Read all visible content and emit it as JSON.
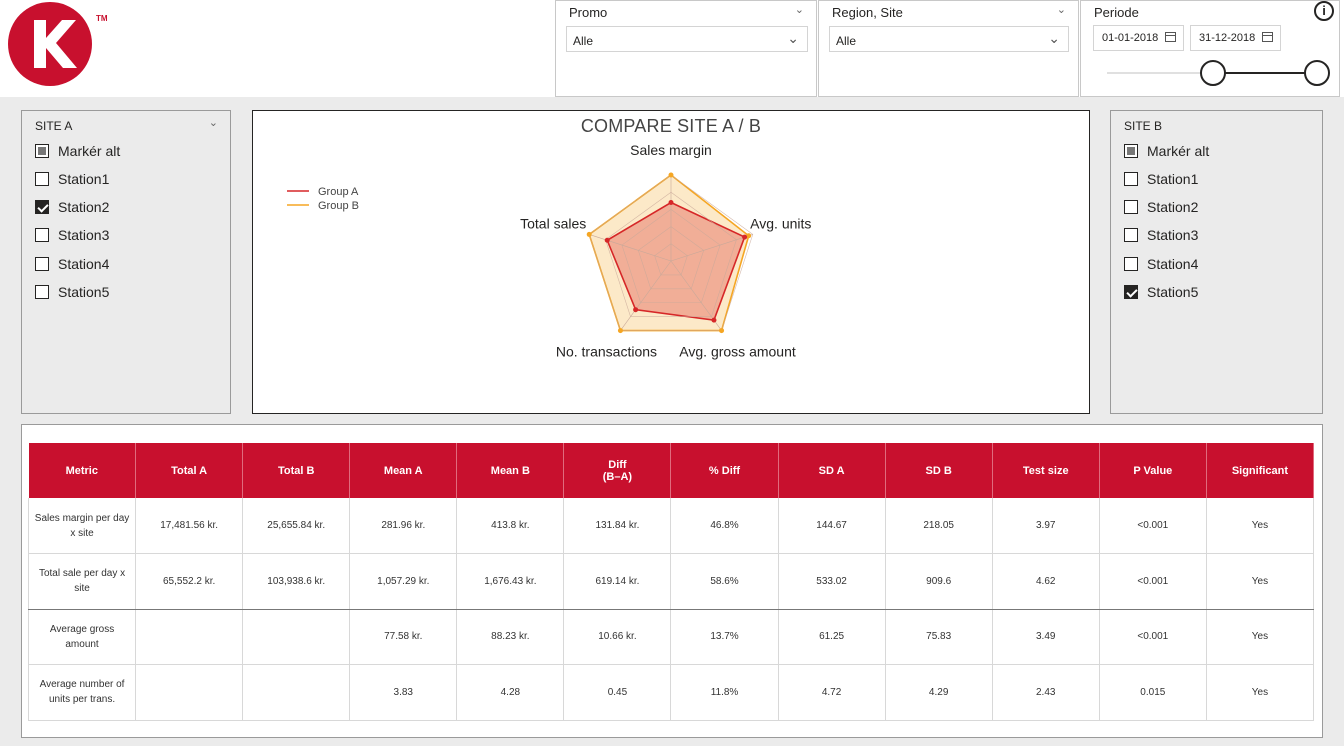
{
  "header": {
    "logo_letter": "K",
    "logo_tm": "TM",
    "brand_color": "#c8102e",
    "promo": {
      "title": "Promo",
      "value": "Alle"
    },
    "region": {
      "title": "Region, Site",
      "value": "Alle"
    },
    "periode": {
      "title": "Periode",
      "start": "01-01-2018",
      "end": "31-12-2018",
      "range_fraction": [
        0.5,
        1.0
      ]
    },
    "info_icon": "i"
  },
  "site_a": {
    "title": "SITE A",
    "items": [
      {
        "label": "Markér alt",
        "state": "partial"
      },
      {
        "label": "Station1",
        "state": "unchecked"
      },
      {
        "label": "Station2",
        "state": "checked"
      },
      {
        "label": "Station3",
        "state": "unchecked"
      },
      {
        "label": "Station4",
        "state": "unchecked"
      },
      {
        "label": "Station5",
        "state": "unchecked"
      }
    ]
  },
  "site_b": {
    "title": "SITE B",
    "items": [
      {
        "label": "Markér alt",
        "state": "partial"
      },
      {
        "label": "Station1",
        "state": "unchecked"
      },
      {
        "label": "Station2",
        "state": "unchecked"
      },
      {
        "label": "Station3",
        "state": "unchecked"
      },
      {
        "label": "Station4",
        "state": "unchecked"
      },
      {
        "label": "Station5",
        "state": "checked"
      }
    ]
  },
  "chart_data": {
    "type": "radar",
    "title": "COMPARE SITE A / B",
    "axes": [
      "Sales margin",
      "Avg. units",
      "Avg. gross amount",
      "No. transactions",
      "Total sales"
    ],
    "series": [
      {
        "name": "Group A",
        "color": "#d62728",
        "values": [
          0.68,
          0.9,
          0.85,
          0.7,
          0.78
        ]
      },
      {
        "name": "Group B",
        "color": "#f5a623",
        "values": [
          1.0,
          0.95,
          1.0,
          1.0,
          1.0
        ]
      }
    ],
    "legend": "top-left",
    "grid_levels": 5
  },
  "table": {
    "headers": [
      "Metric",
      "Total A",
      "Total B",
      "Mean A",
      "Mean B",
      "Diff\n(B–A)",
      "% Diff",
      "SD A",
      "SD B",
      "Test size",
      "P Value",
      "Significant"
    ],
    "rows": [
      [
        "Sales margin per day x site",
        "17,481.56 kr.",
        "25,655.84 kr.",
        "281.96 kr.",
        "413.8 kr.",
        "131.84 kr.",
        "46.8%",
        "144.67",
        "218.05",
        "3.97",
        "<0.001",
        "Yes"
      ],
      [
        "Total sale per day x site",
        "65,552.2 kr.",
        "103,938.6 kr.",
        "1,057.29 kr.",
        "1,676.43 kr.",
        "619.14 kr.",
        "58.6%",
        "533.02",
        "909.6",
        "4.62",
        "<0.001",
        "Yes"
      ],
      [
        "Average gross amount",
        "",
        "",
        "77.58 kr.",
        "88.23 kr.",
        "10.66 kr.",
        "13.7%",
        "61.25",
        "75.83",
        "3.49",
        "<0.001",
        "Yes"
      ],
      [
        "Average number of units per trans.",
        "",
        "",
        "3.83",
        "4.28",
        "0.45",
        "11.8%",
        "4.72",
        "4.29",
        "2.43",
        "0.015",
        "Yes"
      ]
    ]
  }
}
